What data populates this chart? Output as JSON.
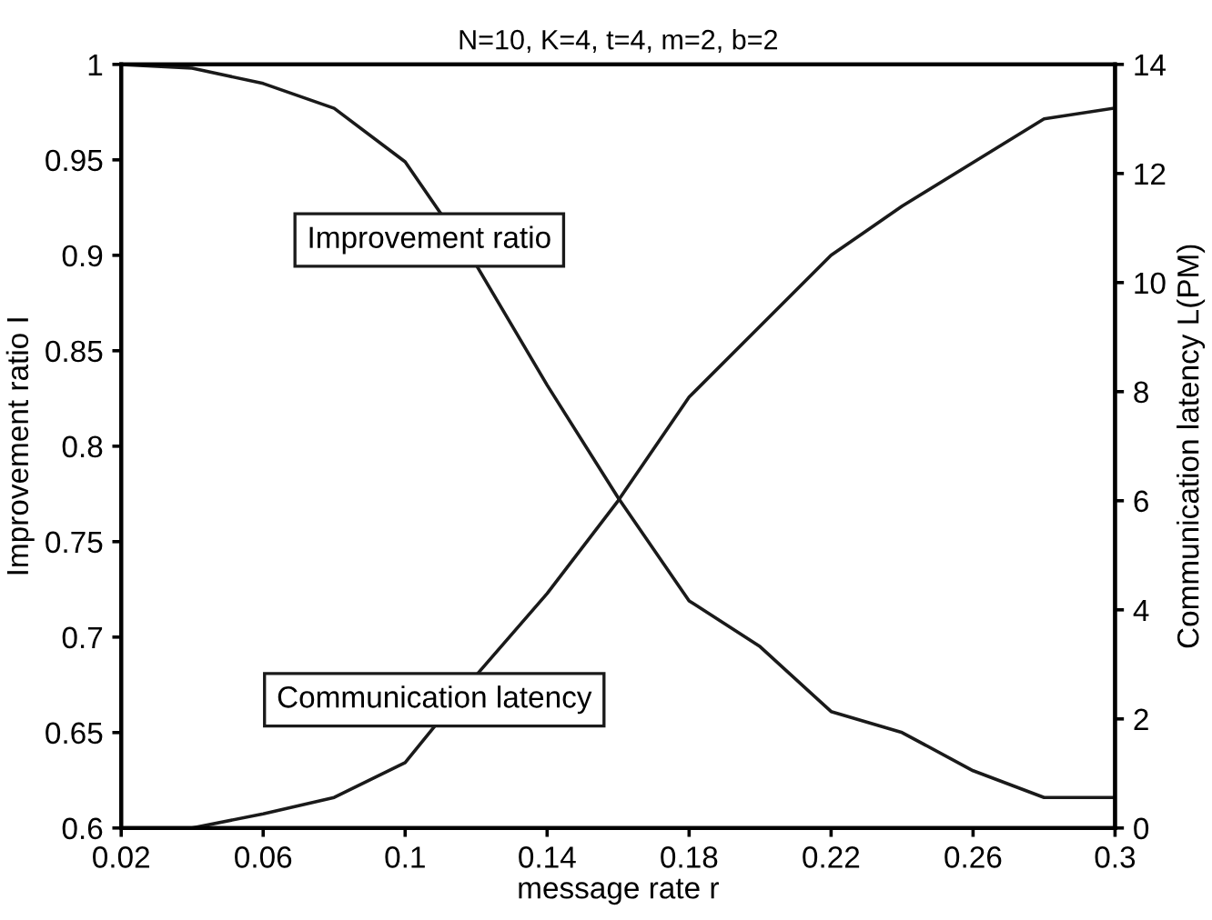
{
  "chart_data": {
    "type": "line",
    "title": "N=10, K=4, t=4, m=2, b=2",
    "xlabel": "message rate r",
    "ylabel": "Improvement ratio I",
    "y2label": "Communication latency L(PM)",
    "x": [
      0.02,
      0.04,
      0.06,
      0.08,
      0.1,
      0.12,
      0.14,
      0.16,
      0.18,
      0.2,
      0.22,
      0.24,
      0.26,
      0.28,
      0.3
    ],
    "series": [
      {
        "name": "Improvement ratio",
        "color": "#1a1a1a",
        "values": [
          1.0,
          0.998,
          0.99,
          0.977,
          0.949,
          0.895,
          0.832,
          0.773,
          0.719,
          0.695,
          0.661,
          0.65,
          0.63,
          0.616,
          0.616
        ]
      },
      {
        "name": "Communication latency",
        "color": "#1a1a1a",
        "axis": "y2",
        "values": [
          0,
          0,
          0.26,
          0.56,
          1.2,
          2.8,
          4.3,
          6.0,
          7.9,
          9.2,
          10.5,
          11.4,
          12.2,
          13.0,
          13.2
        ]
      }
    ],
    "xlim": [
      0.02,
      0.3
    ],
    "xticks": [
      0.02,
      0.06,
      0.1,
      0.14,
      0.18,
      0.22,
      0.26,
      0.3
    ],
    "ylim": [
      0.6,
      1
    ],
    "yticks": [
      0.6,
      0.65,
      0.7,
      0.75,
      0.8,
      0.85,
      0.9,
      0.95,
      1
    ],
    "y2lim": [
      0,
      14
    ],
    "y2ticks": [
      0,
      2,
      4,
      6,
      8,
      10,
      12,
      14
    ],
    "grid": false,
    "legend": false,
    "marker": "none",
    "line_style": "solid"
  }
}
